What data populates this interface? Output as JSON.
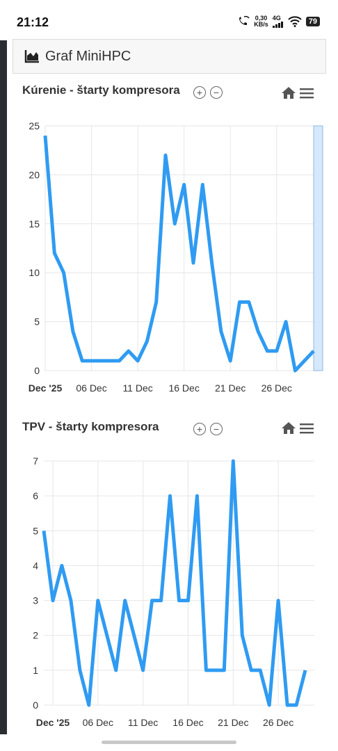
{
  "status": {
    "time": "21:12",
    "speed_value": "0,30",
    "speed_unit": "KB/s",
    "network": "4G",
    "battery": "79"
  },
  "header": {
    "title": "Graf MiniHPC",
    "icon": "area-chart-icon"
  },
  "colors": {
    "line": "#2f9bf2",
    "grid": "#e6e6e6",
    "selection": "#d6e8fb",
    "selection_border": "#8db9e6"
  },
  "chart_data": [
    {
      "type": "line",
      "title": "Kúrenie - štarty kompresora",
      "x": [
        "2025-12-01",
        "2025-12-02",
        "2025-12-03",
        "2025-12-04",
        "2025-12-05",
        "2025-12-06",
        "2025-12-07",
        "2025-12-08",
        "2025-12-09",
        "2025-12-10",
        "2025-12-11",
        "2025-12-12",
        "2025-12-13",
        "2025-12-14",
        "2025-12-15",
        "2025-12-16",
        "2025-12-17",
        "2025-12-18",
        "2025-12-19",
        "2025-12-20",
        "2025-12-21",
        "2025-12-22",
        "2025-12-23",
        "2025-12-24",
        "2025-12-25",
        "2025-12-26",
        "2025-12-27",
        "2025-12-28",
        "2025-12-29",
        "2025-12-30"
      ],
      "values": [
        24,
        12,
        10,
        4,
        1,
        1,
        1,
        1,
        1,
        2,
        1,
        3,
        7,
        22,
        15,
        19,
        11,
        19,
        11,
        4,
        1,
        7,
        7,
        4,
        2,
        2,
        5,
        0,
        1,
        2
      ],
      "x_ticks": [
        "Dec '25",
        "06 Dec",
        "11 Dec",
        "16 Dec",
        "21 Dec",
        "26 Dec"
      ],
      "y_ticks": [
        "0",
        "5",
        "10",
        "15",
        "20",
        "25"
      ],
      "ylim": [
        0,
        25
      ],
      "grid": true
    },
    {
      "type": "line",
      "title": "TPV - štarty kompresora",
      "x": [
        "2025-11-30",
        "2025-12-01",
        "2025-12-02",
        "2025-12-03",
        "2025-12-04",
        "2025-12-05",
        "2025-12-06",
        "2025-12-07",
        "2025-12-08",
        "2025-12-09",
        "2025-12-10",
        "2025-12-11",
        "2025-12-12",
        "2025-12-13",
        "2025-12-14",
        "2025-12-15",
        "2025-12-16",
        "2025-12-17",
        "2025-12-18",
        "2025-12-19",
        "2025-12-20",
        "2025-12-21",
        "2025-12-22",
        "2025-12-23",
        "2025-12-24",
        "2025-12-25",
        "2025-12-26",
        "2025-12-27",
        "2025-12-28",
        "2025-12-29",
        "2025-12-30"
      ],
      "values": [
        5,
        3,
        4,
        3,
        1,
        0,
        3,
        2,
        1,
        3,
        2,
        1,
        3,
        3,
        6,
        3,
        3,
        6,
        1,
        1,
        1,
        7,
        2,
        1,
        1,
        0,
        3,
        0,
        0,
        1,
        null
      ],
      "x_ticks": [
        "Dec '25",
        "06 Dec",
        "11 Dec",
        "16 Dec",
        "21 Dec",
        "26 Dec"
      ],
      "y_ticks": [
        "0",
        "1",
        "2",
        "3",
        "4",
        "5",
        "6",
        "7"
      ],
      "ylim": [
        0,
        7
      ],
      "grid": true
    }
  ]
}
